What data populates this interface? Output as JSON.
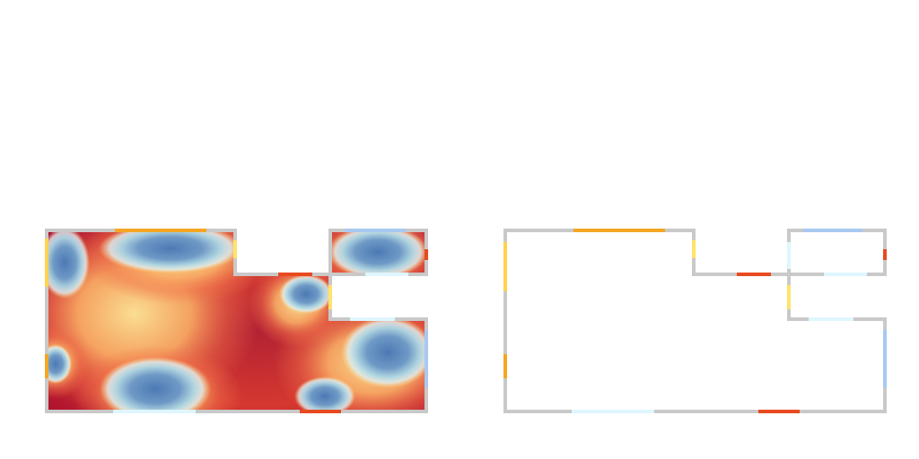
{
  "colors": {
    "background": "#ffffff",
    "wall": "#c9c9c9",
    "heat_hot": "#a50026",
    "heat_warm": "#f46d43",
    "heat_mid": "#fee090",
    "heat_cool": "#e0f3f8",
    "heat_cold": "#4575b4"
  },
  "panels": [
    {
      "name": "heatmap-panel",
      "type": "heatmap"
    },
    {
      "name": "outline-panel",
      "type": "plan-outline"
    }
  ],
  "openings": [
    {
      "name": "top-left-orange-opening",
      "color": "#f5a623"
    },
    {
      "name": "left-yellow-opening",
      "color": "#ffd34d"
    },
    {
      "name": "left-orange-opening",
      "color": "#f5a623"
    },
    {
      "name": "mid-notch-yellow-opening",
      "color": "#ffe36b"
    },
    {
      "name": "mid-red-opening",
      "color": "#e84a1f"
    },
    {
      "name": "bottom-light-opening",
      "color": "#dff6ff"
    },
    {
      "name": "bottom-red-opening",
      "color": "#e84a1f"
    },
    {
      "name": "right-top-blue-opening",
      "color": "#a7c9f2"
    },
    {
      "name": "right-small-red-opening",
      "color": "#e84a1f"
    },
    {
      "name": "right-inner-light-opening",
      "color": "#dff6ff"
    },
    {
      "name": "right-inner-yellow-opening",
      "color": "#ffe36b"
    },
    {
      "name": "right-lower-light-opening",
      "color": "#dff6ff"
    },
    {
      "name": "right-side-blue-opening",
      "color": "#a7c9f2"
    }
  ]
}
